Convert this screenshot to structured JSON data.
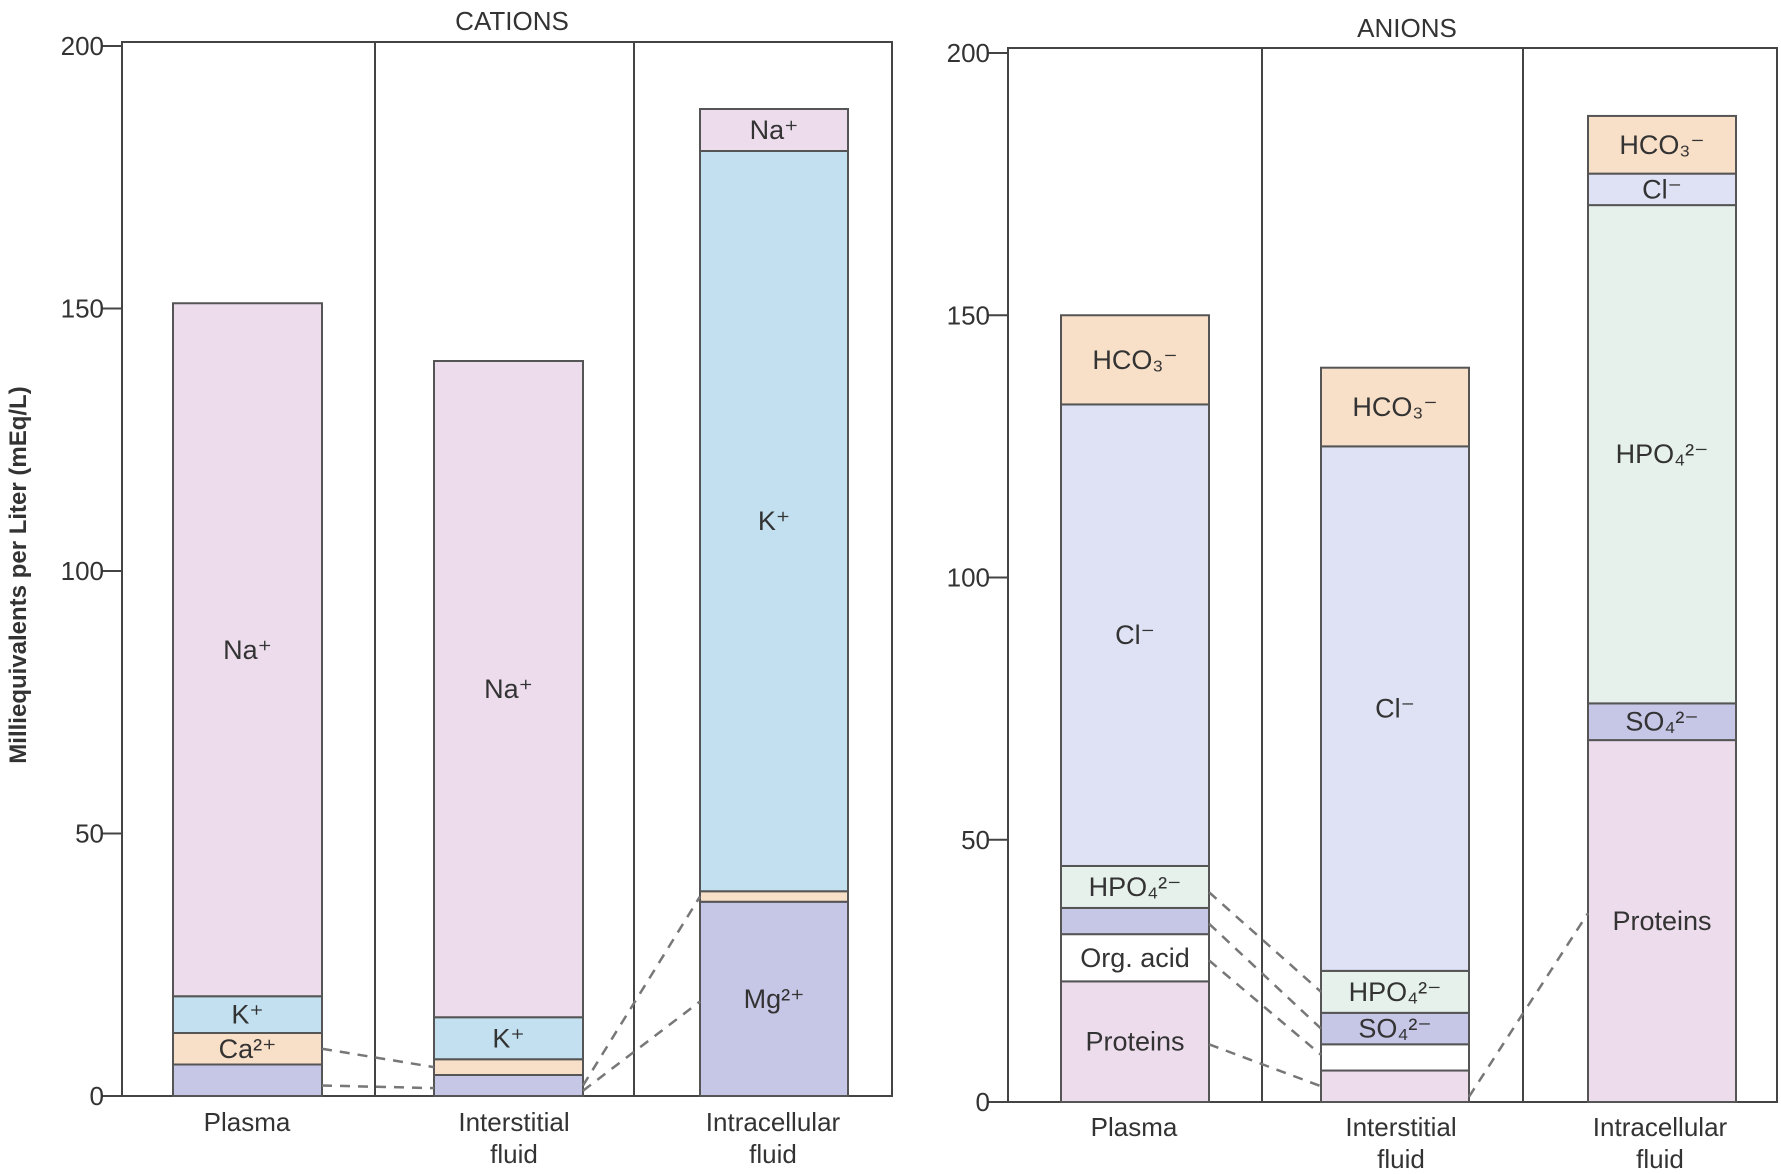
{
  "ylabel": "Milliequivalents per Liter (mEq/L)",
  "colors": {
    "Na": "#ecdcec",
    "K": "#c2e0ef",
    "Ca": "#f8dfc8",
    "Mg": "#c6c6e6",
    "HCO3": "#f8dfc8",
    "Cl": "#dee2f4",
    "HPO4": "#e6f1ec",
    "SO4": "#c6c6e6",
    "OrgAcid": "#ffffff",
    "Proteins": "#ecdcec",
    "Other": "#ffffff"
  },
  "chart_data": [
    {
      "type": "bar",
      "stacked": true,
      "title": "CATIONS",
      "ylabel": "Milliequivalents per Liter (mEq/L)",
      "ylim": [
        0,
        200
      ],
      "yticks": [
        "0",
        "50",
        "100",
        "150",
        "200"
      ],
      "categories": [
        {
          "label": [
            "Plasma"
          ]
        },
        {
          "label": [
            "Interstitial",
            "fluid"
          ]
        },
        {
          "label": [
            "Intracellular",
            "fluid"
          ]
        }
      ],
      "bars": [
        [
          {
            "label": "",
            "from": 0,
            "to": 6,
            "color": "Mg"
          },
          {
            "label": "Ca²⁺",
            "from": 6,
            "to": 12,
            "color": "Ca"
          },
          {
            "label": "K⁺",
            "from": 12,
            "to": 19,
            "color": "K"
          },
          {
            "label": "Na⁺",
            "from": 19,
            "to": 151,
            "color": "Na"
          }
        ],
        [
          {
            "label": "",
            "from": 0,
            "to": 4,
            "color": "Mg"
          },
          {
            "label": "",
            "from": 4,
            "to": 7,
            "color": "Ca"
          },
          {
            "label": "K⁺",
            "from": 7,
            "to": 15,
            "color": "K"
          },
          {
            "label": "Na⁺",
            "from": 15,
            "to": 140,
            "color": "Na"
          }
        ],
        [
          {
            "label": "Mg²⁺",
            "from": 0,
            "to": 37,
            "color": "Mg"
          },
          {
            "label": "",
            "from": 37,
            "to": 39,
            "color": "Ca"
          },
          {
            "label": "K⁺",
            "from": 39,
            "to": 180,
            "color": "K"
          },
          {
            "label": "Na⁺",
            "from": 180,
            "to": 188,
            "color": "Na"
          }
        ]
      ]
    },
    {
      "type": "bar",
      "stacked": true,
      "title": "ANIONS",
      "ylim": [
        0,
        200
      ],
      "yticks": [
        "0",
        "50",
        "100",
        "150",
        "200"
      ],
      "categories": [
        {
          "label": [
            "Plasma"
          ]
        },
        {
          "label": [
            "Interstitial",
            "fluid"
          ]
        },
        {
          "label": [
            "Intracellular",
            "fluid"
          ]
        }
      ],
      "bars": [
        [
          {
            "label": "Proteins",
            "from": 0,
            "to": 23,
            "color": "Proteins"
          },
          {
            "label": "Org. acid",
            "from": 23,
            "to": 32,
            "color": "OrgAcid"
          },
          {
            "label": "",
            "from": 32,
            "to": 37,
            "color": "SO4"
          },
          {
            "label": "HPO₄²⁻",
            "from": 37,
            "to": 45,
            "color": "HPO4"
          },
          {
            "label": "Cl⁻",
            "from": 45,
            "to": 133,
            "color": "Cl"
          },
          {
            "label": "HCO₃⁻",
            "from": 133,
            "to": 150,
            "color": "HCO3"
          }
        ],
        [
          {
            "label": "",
            "from": 0,
            "to": 6,
            "color": "Proteins"
          },
          {
            "label": "",
            "from": 6,
            "to": 11,
            "color": "OrgAcid"
          },
          {
            "label": "SO₄²⁻",
            "from": 11,
            "to": 17,
            "color": "SO4"
          },
          {
            "label": "HPO₄²⁻",
            "from": 17,
            "to": 25,
            "color": "HPO4"
          },
          {
            "label": "Cl⁻",
            "from": 25,
            "to": 125,
            "color": "Cl"
          },
          {
            "label": "HCO₃⁻",
            "from": 125,
            "to": 140,
            "color": "HCO3"
          }
        ],
        [
          {
            "label": "Proteins",
            "from": 0,
            "to": 69,
            "color": "Proteins"
          },
          {
            "label": "SO₄²⁻",
            "from": 69,
            "to": 76,
            "color": "SO4"
          },
          {
            "label": "HPO₄²⁻",
            "from": 76,
            "to": 171,
            "color": "HPO4"
          },
          {
            "label": "Cl⁻",
            "from": 171,
            "to": 177,
            "color": "Cl"
          },
          {
            "label": "HCO₃⁻",
            "from": 177,
            "to": 188,
            "color": "HCO3"
          }
        ]
      ]
    }
  ]
}
